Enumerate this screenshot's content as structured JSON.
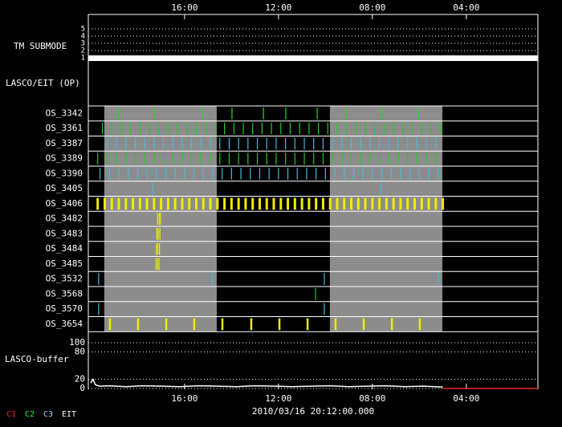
{
  "chart_data": {
    "type": "timeline",
    "xlim": [
      -0.1,
      19.05
    ],
    "xticks": [
      {
        "value": 4,
        "label": "16:00"
      },
      {
        "value": 8,
        "label": "12:00"
      },
      {
        "value": 12,
        "label": "08:00"
      },
      {
        "value": 16,
        "label": "04:00"
      }
    ],
    "date": "2010/03/16 20:12:00.000",
    "submode": {
      "label": "TM SUBMODE",
      "ylim": [
        1,
        5
      ],
      "yticks": [
        1,
        2,
        3,
        4,
        5
      ],
      "value": 1
    },
    "section_label": "LASCO/EIT (OP)",
    "shaded_intervals": [
      [
        0.58,
        5.37
      ],
      [
        10.19,
        14.98
      ]
    ],
    "rows": [
      {
        "label": "OS_3342",
        "color": "#22dd22",
        "times": [
          1.17,
          2.7,
          4.76,
          6.02,
          7.36,
          8.31,
          9.65,
          10.88,
          12.38,
          13.96
        ]
      },
      {
        "label": "OS_3361",
        "color": "#22cc22",
        "times": [
          0.5,
          0.9,
          1.3,
          1.7,
          2.1,
          2.5,
          2.9,
          3.3,
          3.7,
          4.1,
          4.5,
          4.9,
          5.3,
          5.7,
          6.1,
          6.5,
          6.9,
          7.3,
          7.7,
          8.1,
          8.5,
          8.9,
          9.3,
          9.7,
          10.1,
          10.5,
          10.9,
          11.3,
          11.7,
          12.1,
          12.5,
          12.9,
          13.3,
          13.7,
          14.1,
          14.5,
          14.9
        ]
      },
      {
        "label": "OS_3387",
        "color": "#44bbdd",
        "times": [
          0.7,
          1.1,
          1.5,
          1.9,
          2.3,
          2.7,
          3.1,
          3.5,
          3.9,
          4.3,
          4.7,
          5.1,
          5.5,
          5.9,
          6.3,
          6.7,
          7.1,
          7.5,
          7.9,
          8.3,
          8.7,
          9.1,
          9.5,
          9.9,
          10.3,
          10.7,
          11.1,
          11.5,
          11.9,
          12.3,
          12.7,
          13.1,
          13.5,
          13.9,
          14.3,
          14.7
        ]
      },
      {
        "label": "OS_3389",
        "color": "#22cc22",
        "times": [
          0.3,
          0.7,
          1.1,
          1.5,
          1.9,
          2.3,
          2.7,
          3.1,
          3.5,
          3.9,
          4.3,
          4.7,
          5.1,
          5.5,
          5.9,
          6.3,
          6.7,
          7.1,
          7.5,
          7.9,
          8.3,
          8.7,
          9.1,
          9.5,
          9.9,
          10.3,
          10.7,
          11.1,
          11.5,
          11.9,
          12.3,
          12.7,
          13.1,
          13.5,
          13.9,
          14.3,
          14.7
        ]
      },
      {
        "label": "OS_3390",
        "color": "#44bbdd",
        "times": [
          0.4,
          0.8,
          1.2,
          1.6,
          2.0,
          2.4,
          2.8,
          3.2,
          3.6,
          4.0,
          4.4,
          4.8,
          5.2,
          5.6,
          6.0,
          6.4,
          6.8,
          7.2,
          7.6,
          8.0,
          8.4,
          8.8,
          9.2,
          9.6,
          10.0,
          10.4,
          10.8,
          11.2,
          11.6,
          12.0,
          12.4,
          12.8,
          13.2,
          13.6,
          14.0,
          14.4,
          14.8
        ]
      },
      {
        "label": "OS_3405",
        "color": "#44bbdd",
        "times": [
          2.64,
          12.35
        ]
      },
      {
        "label": "OS_3406",
        "color": "#eeee00",
        "times": [
          0.3,
          0.6,
          0.9,
          1.2,
          1.5,
          1.8,
          2.1,
          2.4,
          2.7,
          3.0,
          3.3,
          3.6,
          3.9,
          4.2,
          4.5,
          4.8,
          5.1,
          5.4,
          5.7,
          6.0,
          6.3,
          6.6,
          6.9,
          7.2,
          7.5,
          7.8,
          8.1,
          8.4,
          8.7,
          9.0,
          9.3,
          9.6,
          9.9,
          10.2,
          10.5,
          10.8,
          11.1,
          11.4,
          11.7,
          12.0,
          12.3,
          12.6,
          12.9,
          13.2,
          13.5,
          13.8,
          14.1,
          14.4,
          14.7,
          15.0
        ]
      },
      {
        "label": "OS_3482",
        "color": "#eeee00",
        "times": [
          2.85,
          2.92,
          2.98
        ]
      },
      {
        "label": "OS_3483",
        "color": "#eeee00",
        "times": [
          2.82,
          2.88,
          2.95
        ]
      },
      {
        "label": "OS_3484",
        "color": "#eeee00",
        "times": [
          2.8,
          2.86,
          2.93
        ]
      },
      {
        "label": "OS_3485",
        "color": "#eeee00",
        "times": [
          2.78,
          2.85,
          2.91
        ]
      },
      {
        "label": "OS_3532",
        "color": "#44bbdd",
        "times": [
          0.34,
          5.17,
          9.95,
          14.81
        ]
      },
      {
        "label": "OS_3568",
        "color": "#22cc22",
        "times": [
          9.58
        ]
      },
      {
        "label": "OS_3570",
        "color": "#44bbdd",
        "times": [
          0.34,
          9.95
        ]
      },
      {
        "label": "OS_3654",
        "color": "#eeee00",
        "times": [
          0.82,
          2.02,
          3.22,
          4.41,
          5.61,
          6.84,
          8.04,
          9.24,
          10.43,
          11.63,
          12.83,
          14.02
        ]
      }
    ],
    "buffer": {
      "label": "LASCO-buffer",
      "ylim": [
        0,
        100
      ],
      "yticks": [
        0,
        20,
        80,
        100
      ],
      "x": [
        0,
        0.1,
        0.2,
        0.4,
        0.8,
        1.5,
        2.2,
        3.0,
        3.8,
        4.6,
        5.4,
        6.2,
        7.0,
        7.8,
        8.6,
        9.4,
        10.2,
        11.0,
        11.8,
        12.6,
        13.4,
        14.2,
        15.0
      ],
      "values": [
        12,
        20,
        8,
        5,
        6,
        4,
        6,
        5,
        4,
        6,
        5,
        4,
        6,
        5,
        4,
        5,
        6,
        4,
        5,
        6,
        4,
        5,
        3
      ]
    },
    "legend": [
      {
        "name": "C1",
        "color": "#ee2222"
      },
      {
        "name": "C2",
        "color": "#22ee22"
      },
      {
        "name": "C3",
        "color": "#aaddff"
      },
      {
        "name": "EIT",
        "color": "#ffffff"
      }
    ]
  }
}
